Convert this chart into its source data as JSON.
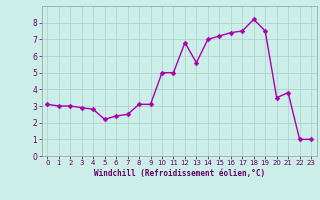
{
  "x": [
    0,
    1,
    2,
    3,
    4,
    5,
    6,
    7,
    8,
    9,
    10,
    11,
    12,
    13,
    14,
    15,
    16,
    17,
    18,
    19,
    20,
    21,
    22,
    23
  ],
  "y": [
    3.1,
    3.0,
    3.0,
    2.9,
    2.8,
    2.2,
    2.4,
    2.5,
    3.1,
    3.1,
    5.0,
    5.0,
    6.8,
    5.6,
    7.0,
    7.2,
    7.4,
    7.5,
    8.2,
    7.5,
    3.5,
    3.8,
    1.0,
    1.0
  ],
  "line_color": "#aa00aa",
  "marker_color": "#aa00aa",
  "bg_color": "#cceee8",
  "grid_color": "#aacccc",
  "xlabel": "Windchill (Refroidissement éolien,°C)",
  "xlabel_color": "#660066",
  "tick_color": "#660066",
  "ylim": [
    0,
    9
  ],
  "xlim": [
    -0.5,
    23.5
  ],
  "yticks": [
    0,
    1,
    2,
    3,
    4,
    5,
    6,
    7,
    8
  ],
  "xticks": [
    0,
    1,
    2,
    3,
    4,
    5,
    6,
    7,
    8,
    9,
    10,
    11,
    12,
    13,
    14,
    15,
    16,
    17,
    18,
    19,
    20,
    21,
    22,
    23
  ],
  "marker_size": 2.5,
  "line_width": 1.0
}
